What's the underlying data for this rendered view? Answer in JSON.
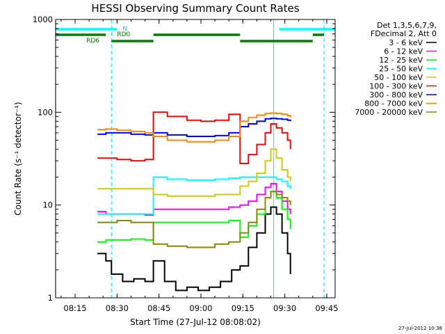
{
  "chart_data": {
    "type": "line",
    "title": "HESSI Observing Summary Count Rates",
    "xlabel": "Start Time (27-Jul-12 08:08:02)",
    "ylabel": "Count Rate (s⁻¹ detector⁻¹)",
    "y_scale": "log",
    "ylim": [
      1,
      1000
    ],
    "xlim": [
      "08:08:02",
      "09:48"
    ],
    "x_ticks": [
      "08:15",
      "08:30",
      "08:45",
      "09:00",
      "09:15",
      "09:30",
      "09:45"
    ],
    "y_ticks": [
      "1",
      "10",
      "100",
      "1000"
    ],
    "grid": false,
    "legend_position": "right",
    "legend_header": [
      "Det 1,3,5,6,7,9,",
      "FDecimal 2, Att 0"
    ],
    "series": [
      {
        "name": "3 - 6 keV",
        "color": "#000000",
        "x": [
          "08:23",
          "08:26",
          "08:28",
          "08:32",
          "08:36",
          "08:40",
          "08:43",
          "08:47",
          "08:51",
          "08:55",
          "08:59",
          "09:03",
          "09:07",
          "09:11",
          "09:14",
          "09:17",
          "09:20",
          "09:23",
          "09:25",
          "09:27",
          "09:29",
          "09:31",
          "09:32"
        ],
        "y": [
          3.0,
          2.5,
          1.8,
          1.5,
          1.6,
          1.5,
          2.5,
          1.5,
          1.2,
          1.3,
          1.2,
          1.3,
          1.5,
          2.0,
          2.2,
          3.5,
          5.0,
          8.0,
          9.5,
          8.0,
          5.0,
          3.0,
          1.8
        ]
      },
      {
        "name": "6 - 12 keV",
        "color": "#ff00ff",
        "x": [
          "08:23",
          "08:26",
          "08:30",
          "08:35",
          "08:40",
          "08:43",
          "08:48",
          "08:55",
          "09:00",
          "09:05",
          "09:10",
          "09:14",
          "09:17",
          "09:20",
          "09:23",
          "09:25",
          "09:27",
          "09:29",
          "09:31",
          "09:32"
        ],
        "y": [
          8.5,
          8.0,
          8.0,
          8.0,
          7.8,
          9.0,
          9.0,
          9.0,
          9.0,
          9.0,
          9.5,
          10.0,
          11.0,
          13.0,
          15.5,
          17.0,
          14.0,
          11.0,
          9.0,
          8.0
        ]
      },
      {
        "name": "12 - 25 keV",
        "color": "#00ff00",
        "x": [
          "08:23",
          "08:26",
          "08:30",
          "08:35",
          "08:40",
          "08:43",
          "08:48",
          "08:55",
          "09:00",
          "09:05",
          "09:10",
          "09:14",
          "09:17",
          "09:20",
          "09:23",
          "09:25",
          "09:27",
          "09:29",
          "09:31",
          "09:32"
        ],
        "y": [
          4.0,
          4.2,
          4.2,
          4.3,
          4.2,
          6.5,
          6.5,
          6.5,
          6.5,
          6.5,
          6.8,
          4.5,
          6.0,
          8.0,
          12.0,
          14.0,
          12.0,
          9.0,
          7.0,
          5.5
        ]
      },
      {
        "name": "25 - 50 keV",
        "color": "#00ffff",
        "x": [
          "08:23",
          "08:26",
          "08:30",
          "08:35",
          "08:40",
          "08:43",
          "08:48",
          "08:55",
          "09:00",
          "09:05",
          "09:10",
          "09:14",
          "09:17",
          "09:20",
          "09:23",
          "09:25",
          "09:27",
          "09:29",
          "09:31",
          "09:32"
        ],
        "y": [
          8.0,
          8.0,
          8.0,
          8.0,
          8.0,
          20.0,
          19.0,
          18.5,
          18.5,
          19.0,
          19.5,
          20.0,
          20.0,
          20.0,
          20.0,
          20.0,
          19.0,
          18.0,
          16.0,
          15.0
        ]
      },
      {
        "name": "50 - 100 keV",
        "color": "#cccc00",
        "x": [
          "08:23",
          "08:26",
          "08:30",
          "08:35",
          "08:40",
          "08:43",
          "08:48",
          "08:55",
          "09:00",
          "09:05",
          "09:10",
          "09:14",
          "09:17",
          "09:20",
          "09:23",
          "09:25",
          "09:27",
          "09:29",
          "09:31",
          "09:32"
        ],
        "y": [
          15.0,
          15.0,
          15.0,
          15.0,
          15.0,
          13.0,
          12.5,
          12.5,
          12.5,
          13.0,
          13.0,
          16.0,
          18.0,
          22.0,
          30.0,
          40.0,
          32.0,
          24.0,
          20.0,
          18.0
        ]
      },
      {
        "name": "100 - 300 keV",
        "color": "#ff0000",
        "x": [
          "08:23",
          "08:26",
          "08:30",
          "08:35",
          "08:40",
          "08:43",
          "08:48",
          "08:55",
          "09:00",
          "09:05",
          "09:10",
          "09:14",
          "09:17",
          "09:20",
          "09:23",
          "09:25",
          "09:27",
          "09:29",
          "09:31",
          "09:32"
        ],
        "y": [
          32.0,
          32.0,
          31.0,
          30.0,
          31.0,
          100.0,
          90.0,
          82.0,
          80.0,
          82.0,
          95.0,
          28.0,
          35.0,
          45.0,
          60.0,
          75.0,
          68.0,
          60.0,
          50.0,
          40.0
        ]
      },
      {
        "name": "300 - 800 keV",
        "color": "#0000ff",
        "x": [
          "08:23",
          "08:26",
          "08:30",
          "08:35",
          "08:40",
          "08:43",
          "08:48",
          "08:55",
          "09:00",
          "09:05",
          "09:10",
          "09:14",
          "09:17",
          "09:20",
          "09:23",
          "09:25",
          "09:27",
          "09:29",
          "09:31",
          "09:32"
        ],
        "y": [
          58.0,
          60.0,
          60.0,
          58.0,
          57.0,
          60.0,
          57.0,
          55.0,
          55.0,
          56.0,
          60.0,
          70.0,
          75.0,
          80.0,
          85.0,
          86.0,
          85.0,
          84.0,
          82.0,
          80.0
        ]
      },
      {
        "name": "800 - 7000 keV",
        "color": "#ff8800",
        "x": [
          "08:23",
          "08:26",
          "08:30",
          "08:35",
          "08:40",
          "08:43",
          "08:48",
          "08:55",
          "09:00",
          "09:05",
          "09:10",
          "09:14",
          "09:17",
          "09:20",
          "09:23",
          "09:25",
          "09:27",
          "09:29",
          "09:31",
          "09:32"
        ],
        "y": [
          65.0,
          66.0,
          64.0,
          62.0,
          60.0,
          55.0,
          50.0,
          48.0,
          48.0,
          50.0,
          55.0,
          80.0,
          88.0,
          93.0,
          97.0,
          98.0,
          97.0,
          95.0,
          92.0,
          88.0
        ]
      },
      {
        "name": "7000 - 20000 keV",
        "color": "#888800",
        "x": [
          "08:23",
          "08:26",
          "08:30",
          "08:35",
          "08:40",
          "08:43",
          "08:48",
          "08:55",
          "09:00",
          "09:05",
          "09:10",
          "09:14",
          "09:17",
          "09:20",
          "09:23",
          "09:25",
          "09:27",
          "09:29",
          "09:31",
          "09:32"
        ],
        "y": [
          6.5,
          6.5,
          6.8,
          6.5,
          6.5,
          3.8,
          3.6,
          3.5,
          3.5,
          3.8,
          4.0,
          5.0,
          6.5,
          9.0,
          12.0,
          14.0,
          13.0,
          12.0,
          11.0,
          10.0
        ]
      }
    ],
    "state_bars": [
      {
        "label": "N",
        "color": "#00ffff",
        "segments": [
          [
            "08:08",
            "08:30"
          ],
          [
            "09:28",
            "09:48"
          ]
        ]
      },
      {
        "label": "RD0",
        "color": "#008000",
        "segments": [
          [
            "08:08",
            "08:26"
          ],
          [
            "08:43",
            "09:14"
          ],
          [
            "09:40",
            "09:44"
          ]
        ]
      },
      {
        "label": "RD6",
        "color": "#008000",
        "segments": [
          [
            "08:28",
            "08:43"
          ],
          [
            "09:14",
            "09:40"
          ]
        ]
      }
    ],
    "vlines_solid": [
      "08:08",
      "09:26"
    ],
    "vlines_dashed": [
      "08:28",
      "09:44"
    ],
    "vlines_colour": "#00ffff"
  },
  "timestamp": "27-Jul-2012 10:38"
}
